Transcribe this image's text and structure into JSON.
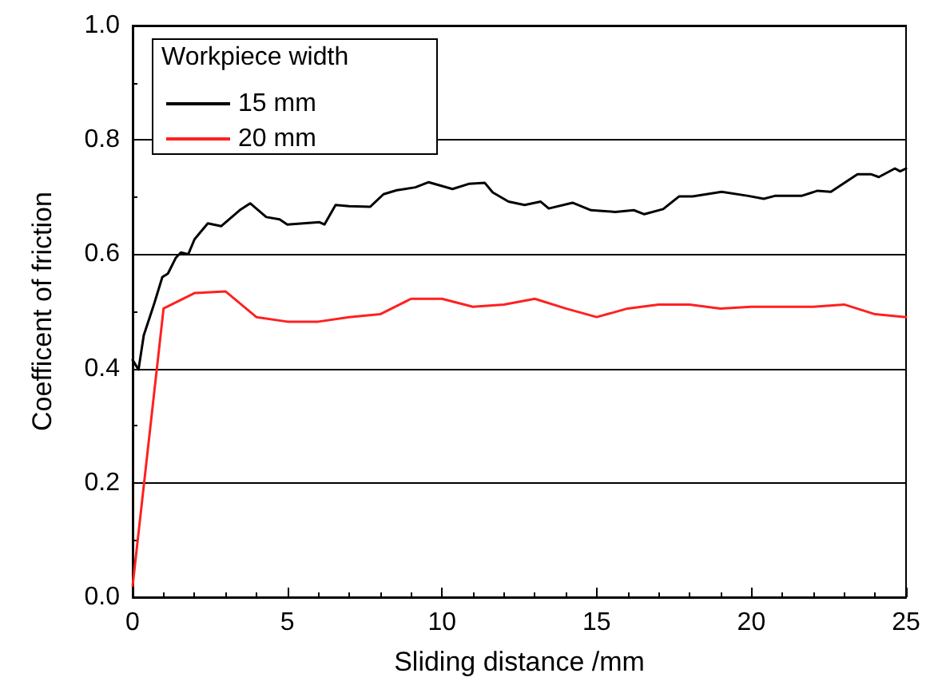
{
  "chart_data": {
    "type": "line",
    "xlabel": "Sliding distance /mm",
    "ylabel": "Coefficent of friction",
    "legend_title": "Workpiece width",
    "xlim": [
      0,
      25
    ],
    "xticks": [
      0,
      5,
      10,
      15,
      20,
      25
    ],
    "ylim": [
      0,
      1
    ],
    "yticks": [
      {
        "value": 0,
        "label": "0.0"
      },
      {
        "value": 0.2,
        "label": "0.2"
      },
      {
        "value": 0.4,
        "label": "0.4"
      },
      {
        "value": 0.6,
        "label": "0.6"
      },
      {
        "value": 0.8,
        "label": "0.8"
      },
      {
        "value": 1,
        "label": "1.0"
      }
    ],
    "grid": "y",
    "legend": "top left",
    "marker": "none",
    "line_style": "solid",
    "series": [
      {
        "name": "15 mm",
        "color": "#000000",
        "x": [
          0,
          0.19,
          0.36,
          0.7,
          0.96,
          1.14,
          1.4,
          1.56,
          1.8,
          2.0,
          2.43,
          2.86,
          3.46,
          3.8,
          4.32,
          4.75,
          5.0,
          6.04,
          6.2,
          6.56,
          7.0,
          7.68,
          8.11,
          8.54,
          9.14,
          9.57,
          10.34,
          10.86,
          11.38,
          11.64,
          12.15,
          12.67,
          13.19,
          13.45,
          14.22,
          14.82,
          15.6,
          16.2,
          16.54,
          17.15,
          17.66,
          18.1,
          19.04,
          19.9,
          20.4,
          20.76,
          21.62,
          22.14,
          22.57,
          23.43,
          23.86,
          24.12,
          24.64,
          24.81,
          25
        ],
        "values": [
          0.415,
          0.398,
          0.458,
          0.514,
          0.56,
          0.566,
          0.594,
          0.603,
          0.6,
          0.626,
          0.654,
          0.649,
          0.677,
          0.689,
          0.665,
          0.661,
          0.652,
          0.656,
          0.652,
          0.686,
          0.684,
          0.683,
          0.705,
          0.712,
          0.717,
          0.726,
          0.714,
          0.723,
          0.725,
          0.708,
          0.692,
          0.686,
          0.692,
          0.68,
          0.69,
          0.677,
          0.674,
          0.677,
          0.67,
          0.679,
          0.701,
          0.701,
          0.709,
          0.702,
          0.697,
          0.702,
          0.702,
          0.711,
          0.709,
          0.74,
          0.74,
          0.735,
          0.75,
          0.745,
          0.75
        ]
      },
      {
        "name": "20 mm",
        "color": "#ff2020",
        "x": [
          0,
          1,
          2,
          3,
          4,
          5,
          6,
          7,
          8,
          9,
          10,
          11,
          12,
          13,
          14,
          15,
          16,
          17,
          18,
          19,
          20,
          21,
          22,
          23,
          24,
          25
        ],
        "values": [
          0.02,
          0.505,
          0.532,
          0.535,
          0.49,
          0.482,
          0.482,
          0.49,
          0.495,
          0.522,
          0.522,
          0.508,
          0.512,
          0.522,
          0.505,
          0.49,
          0.505,
          0.512,
          0.512,
          0.505,
          0.508,
          0.508,
          0.508,
          0.512,
          0.495,
          0.49
        ]
      }
    ]
  }
}
